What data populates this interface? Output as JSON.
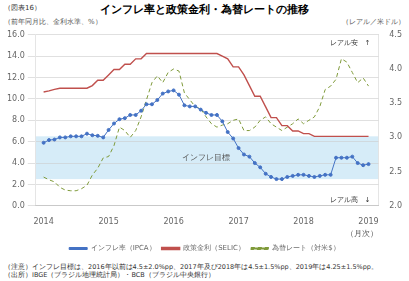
{
  "chart_data": {
    "type": "line",
    "figure_label": "（図表16）",
    "title": "インフレ率と政策金利・為替レートの推移",
    "ylabel": "（前年同月比、金利水準、%）",
    "y2label": "（レアル／米ドル）",
    "xlabel": "（月次）",
    "note": "（注意）インフレ目標は、2016年以前は4.5±2.0%pp、2017年及び2018年は4.5±1.5%pp、2019年は4.25±1.5%pp。",
    "source": "（出所）IBGE（ブラジル地理統計局）・BCB（ブラジル中央銀行）",
    "grid": "y",
    "legend": "bottom",
    "xlim": [
      2013.88,
      2019.15
    ],
    "xticks": [
      2014,
      2015,
      2016,
      2017,
      2018,
      2019
    ],
    "ylim": [
      0.0,
      16.0
    ],
    "yticks": [
      {
        "value": 0.0,
        "label": "0.0"
      },
      {
        "value": 2.0,
        "label": "2.0"
      },
      {
        "value": 4.0,
        "label": "4.0"
      },
      {
        "value": 6.0,
        "label": "6.0"
      },
      {
        "value": 8.0,
        "label": "8.0"
      },
      {
        "value": 10.0,
        "label": "10.0"
      },
      {
        "value": 12.0,
        "label": "12.0"
      },
      {
        "value": 14.0,
        "label": "14.0"
      },
      {
        "value": 16.0,
        "label": "16.0"
      }
    ],
    "y2lim": [
      2.0,
      4.5
    ],
    "y2ticks": [
      {
        "value": 2.0,
        "label": "2.0"
      },
      {
        "value": 2.5,
        "label": "2.5"
      },
      {
        "value": 3.0,
        "label": "3.0"
      },
      {
        "value": 3.5,
        "label": "3.5"
      },
      {
        "value": 4.0,
        "label": "4.0"
      },
      {
        "value": 4.5,
        "label": "4.5"
      }
    ],
    "bands": [
      {
        "ymin": 2.5,
        "ymax": 6.5,
        "color": "#c8e6f5",
        "label": "インフレ目標",
        "label_x": 2016.5,
        "label_y": 4.5
      }
    ],
    "annotations": [
      {
        "text": "レアル安　↑",
        "x": 2018.4,
        "y": 4.38,
        "axis": "y2"
      },
      {
        "text": "レアル高　↓",
        "x": 2018.4,
        "y": 2.08,
        "axis": "y2"
      }
    ],
    "x": [
      2014.0,
      2014.083,
      2014.167,
      2014.25,
      2014.333,
      2014.417,
      2014.5,
      2014.583,
      2014.667,
      2014.75,
      2014.833,
      2014.917,
      2015.0,
      2015.083,
      2015.167,
      2015.25,
      2015.333,
      2015.417,
      2015.5,
      2015.583,
      2015.667,
      2015.75,
      2015.833,
      2015.917,
      2016.0,
      2016.083,
      2016.167,
      2016.25,
      2016.333,
      2016.417,
      2016.5,
      2016.583,
      2016.667,
      2016.75,
      2016.833,
      2016.917,
      2017.0,
      2017.083,
      2017.167,
      2017.25,
      2017.333,
      2017.417,
      2017.5,
      2017.583,
      2017.667,
      2017.75,
      2017.833,
      2017.917,
      2018.0,
      2018.083,
      2018.167,
      2018.25,
      2018.333,
      2018.417,
      2018.5,
      2018.583,
      2018.667,
      2018.75,
      2018.833,
      2018.917,
      2019.0
    ],
    "series": [
      {
        "name": "インフレ率（IPCA）",
        "color": "#4472c4",
        "marker": "o",
        "line_style": "solid",
        "axis": "y",
        "values": [
          5.9,
          6.15,
          6.2,
          6.4,
          6.4,
          6.5,
          6.5,
          6.5,
          6.75,
          6.6,
          6.55,
          6.4,
          7.1,
          7.7,
          8.1,
          8.2,
          8.5,
          8.5,
          8.9,
          9.5,
          9.5,
          9.9,
          10.5,
          10.7,
          10.8,
          10.4,
          9.4,
          9.3,
          9.3,
          9.0,
          8.7,
          8.5,
          8.5,
          7.9,
          6.9,
          6.3,
          5.4,
          4.8,
          4.6,
          4.0,
          3.6,
          3.0,
          2.7,
          2.5,
          2.5,
          2.7,
          2.8,
          2.9,
          2.9,
          2.8,
          2.7,
          2.8,
          2.9,
          2.9,
          4.5,
          4.5,
          4.5,
          4.6,
          4.0,
          3.8,
          3.9
        ]
      },
      {
        "name": "政策金利（SELIC）",
        "color": "#c0504d",
        "line_style": "solid",
        "axis": "y",
        "values": [
          10.65,
          10.75,
          10.9,
          11.0,
          11.0,
          11.0,
          11.0,
          11.0,
          11.0,
          11.25,
          11.75,
          11.75,
          12.25,
          12.75,
          12.75,
          13.25,
          13.25,
          13.75,
          13.75,
          14.25,
          14.25,
          14.25,
          14.25,
          14.25,
          14.25,
          14.25,
          14.25,
          14.25,
          14.25,
          14.25,
          14.25,
          14.25,
          14.25,
          14.0,
          13.75,
          13.0,
          13.0,
          12.25,
          11.25,
          10.25,
          10.25,
          9.25,
          8.25,
          8.25,
          7.5,
          7.5,
          7.0,
          7.0,
          6.75,
          6.75,
          6.5,
          6.5,
          6.5,
          6.5,
          6.5,
          6.5,
          6.5,
          6.5,
          6.5,
          6.5,
          6.5
        ]
      },
      {
        "name": "為替レート（対米$）",
        "color": "#7f9a3a",
        "line_style": "dashed",
        "axis": "y2",
        "values": [
          2.42,
          2.38,
          2.35,
          2.27,
          2.23,
          2.22,
          2.22,
          2.25,
          2.3,
          2.45,
          2.55,
          2.7,
          2.72,
          2.88,
          3.15,
          3.1,
          3.0,
          3.1,
          3.3,
          3.55,
          3.8,
          3.9,
          3.8,
          3.95,
          4.0,
          3.97,
          3.65,
          3.55,
          3.45,
          3.42,
          3.3,
          3.2,
          3.15,
          3.18,
          3.2,
          3.25,
          3.27,
          3.1,
          3.1,
          3.15,
          3.25,
          3.3,
          3.2,
          3.15,
          3.1,
          3.15,
          3.2,
          3.27,
          3.2,
          3.25,
          3.3,
          3.45,
          3.7,
          3.75,
          3.85,
          4.15,
          4.1,
          3.95,
          3.8,
          3.87,
          3.75
        ]
      }
    ]
  }
}
